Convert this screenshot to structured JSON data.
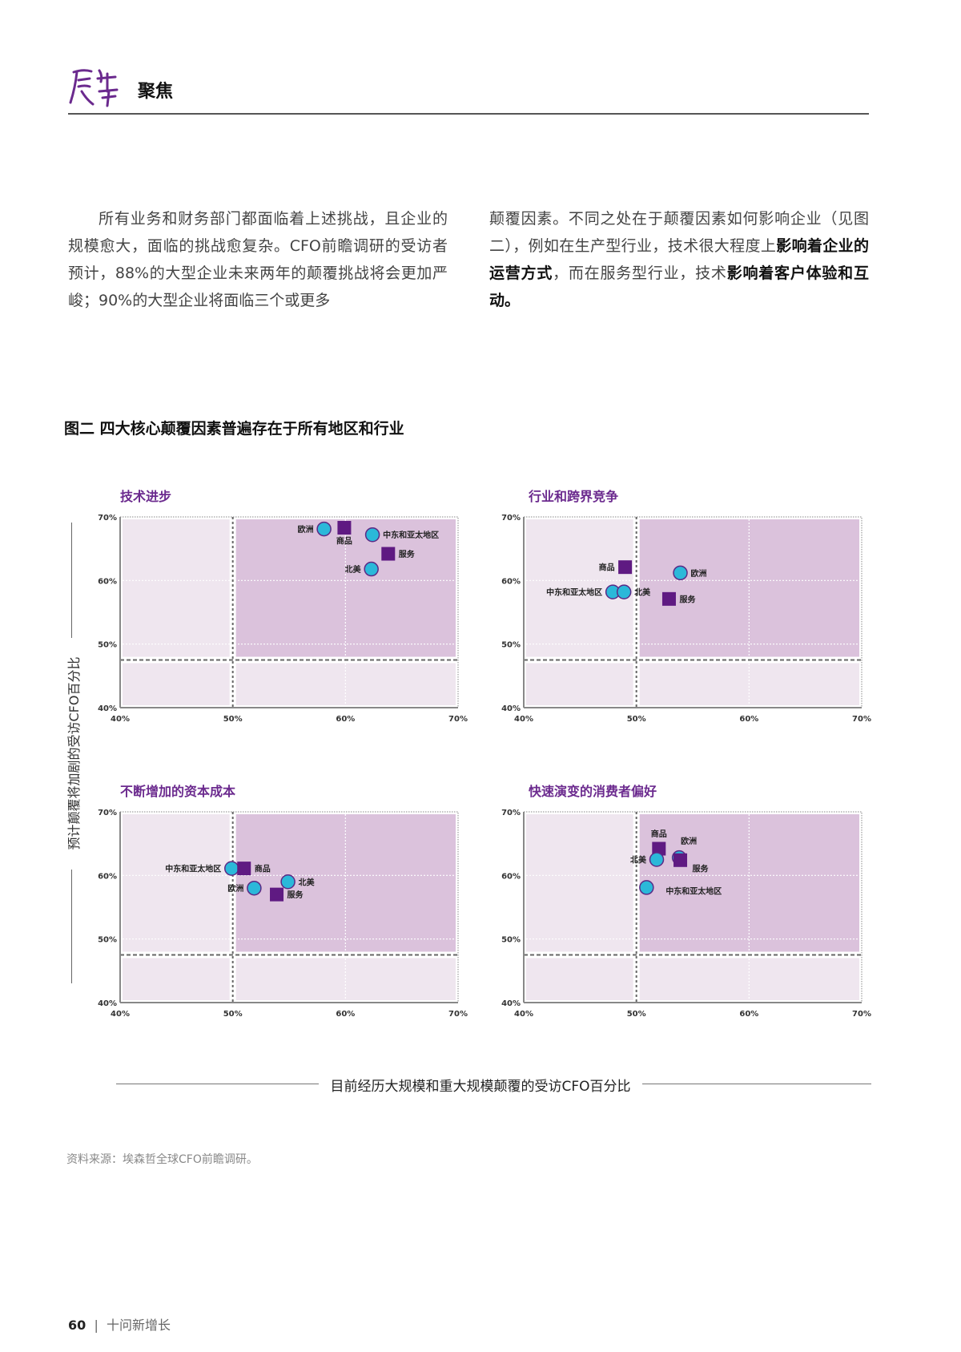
{
  "header": {
    "logo_text": "展望",
    "section": "聚焦"
  },
  "body": {
    "para1": "所有业务和财务部门都面临着上述挑战，且企业的规模愈大，面临的挑战愈复杂。CFO前瞻调研的受访者预计，88%的大型企业未来两年的颠覆挑战将会更加严峻；90%的大型企业将面临三个或更多",
    "para2_a": "颠覆因素。不同之处在于颠覆因素如何影响企业（见图二），例如在生产型行业，技术很大程度上",
    "para2_b": "影响着企业的运营方式",
    "para2_c": "，而在服务型行业，技术",
    "para2_d": "影响着客户体验和互动。"
  },
  "figure": {
    "title": "图二  四大核心颠覆因素普遍存在于所有地区和行业",
    "ylabel": "预计颠覆将加剧的受访CFO百分比",
    "xlabel": "目前经历大规模和重大规模颠覆的受访CFO百分比",
    "source": "资料来源：埃森哲全球CFO前瞻调研。"
  },
  "colors": {
    "accent": "#6b2a8e",
    "circle": "#2bb8d9",
    "circle_stroke": "#5b2a86",
    "square": "#5f1a82",
    "quad_light": "#efe6ef",
    "quad_dark": "#dbc2dc"
  },
  "chart_data": [
    {
      "type": "scatter",
      "title": "技术进步",
      "xlim": [
        40,
        70
      ],
      "ylim": [
        40,
        70
      ],
      "xticks": [
        "40%",
        "50%",
        "60%",
        "70%"
      ],
      "yticks": [
        "40%",
        "50%",
        "60%",
        "70%"
      ],
      "threshold": {
        "x": 50,
        "y": 47.5
      },
      "grid": true,
      "points": [
        {
          "label": "欧洲",
          "shape": "circle",
          "x": 58.1,
          "y": 68.1,
          "label_pos": "left"
        },
        {
          "label": "商品",
          "shape": "square",
          "x": 59.9,
          "y": 68.3,
          "label_pos": "below"
        },
        {
          "label": "中东和亚太地区",
          "shape": "circle",
          "x": 62.4,
          "y": 67.2,
          "label_pos": "right"
        },
        {
          "label": "服务",
          "shape": "square",
          "x": 63.8,
          "y": 64.2,
          "label_pos": "right"
        },
        {
          "label": "北美",
          "shape": "circle",
          "x": 62.3,
          "y": 61.8,
          "label_pos": "left"
        }
      ]
    },
    {
      "type": "scatter",
      "title": "行业和跨界竞争",
      "xlim": [
        40,
        70
      ],
      "ylim": [
        40,
        70
      ],
      "xticks": [
        "40%",
        "50%",
        "60%",
        "70%"
      ],
      "yticks": [
        "40%",
        "50%",
        "60%",
        "70%"
      ],
      "threshold": {
        "x": 50,
        "y": 47.5
      },
      "grid": true,
      "points": [
        {
          "label": "商品",
          "shape": "square",
          "x": 49.0,
          "y": 62.1,
          "label_pos": "left"
        },
        {
          "label": "欧洲",
          "shape": "circle",
          "x": 53.9,
          "y": 61.2,
          "label_pos": "right"
        },
        {
          "label": "中东和亚太地区",
          "shape": "circle",
          "x": 47.9,
          "y": 58.2,
          "label_pos": "left"
        },
        {
          "label": "北美",
          "shape": "circle",
          "x": 48.9,
          "y": 58.2,
          "label_pos": "right"
        },
        {
          "label": "服务",
          "shape": "square",
          "x": 52.9,
          "y": 57.1,
          "label_pos": "right"
        }
      ]
    },
    {
      "type": "scatter",
      "title": "不断增加的资本成本",
      "xlim": [
        40,
        70
      ],
      "ylim": [
        40,
        70
      ],
      "xticks": [
        "40%",
        "50%",
        "60%",
        "70%"
      ],
      "yticks": [
        "40%",
        "50%",
        "60%",
        "70%"
      ],
      "threshold": {
        "x": 50,
        "y": 47.5
      },
      "grid": true,
      "points": [
        {
          "label": "中东和亚太地区",
          "shape": "circle",
          "x": 49.9,
          "y": 61.1,
          "label_pos": "left"
        },
        {
          "label": "商品",
          "shape": "square",
          "x": 51.0,
          "y": 61.1,
          "label_pos": "right"
        },
        {
          "label": "欧洲",
          "shape": "circle",
          "x": 51.9,
          "y": 58.0,
          "label_pos": "left"
        },
        {
          "label": "北美",
          "shape": "circle",
          "x": 54.9,
          "y": 59.0,
          "label_pos": "right"
        },
        {
          "label": "服务",
          "shape": "square",
          "x": 53.9,
          "y": 57.0,
          "label_pos": "right"
        }
      ]
    },
    {
      "type": "scatter",
      "title": "快速演变的消费者偏好",
      "xlim": [
        40,
        70
      ],
      "ylim": [
        40,
        70
      ],
      "xticks": [
        "40%",
        "50%",
        "60%",
        "70%"
      ],
      "yticks": [
        "40%",
        "50%",
        "60%",
        "70%"
      ],
      "threshold": {
        "x": 50,
        "y": 47.5
      },
      "grid": true,
      "points": [
        {
          "label": "商品",
          "shape": "square",
          "x": 52.0,
          "y": 64.2,
          "label_pos": "above"
        },
        {
          "label": "北美",
          "shape": "circle",
          "x": 51.8,
          "y": 62.5,
          "label_pos": "left"
        },
        {
          "label": "欧洲",
          "shape": "circle",
          "x": 53.8,
          "y": 62.8,
          "label_pos": "above-right"
        },
        {
          "label": "服务",
          "shape": "square",
          "x": 53.9,
          "y": 62.4,
          "label_pos": "below-right"
        },
        {
          "label": "中东和亚太地区",
          "shape": "circle",
          "x": 50.9,
          "y": 58.1,
          "label_pos": "right"
        }
      ]
    }
  ],
  "footer": {
    "page": "60",
    "separator": "|",
    "title": "十问新增长"
  }
}
